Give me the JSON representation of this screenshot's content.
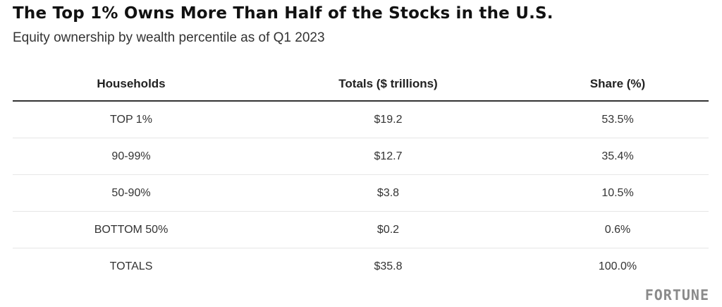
{
  "chart_data": {
    "type": "table",
    "title": "The Top 1% Owns More Than Half of the Stocks in the U.S.",
    "subtitle": "Equity ownership by wealth percentile as of Q1 2023",
    "columns": [
      "Households",
      "Totals ($ trillions)",
      "Share (%)"
    ],
    "rows": [
      {
        "households": "TOP 1%",
        "total": "$19.2",
        "share": "53.5%"
      },
      {
        "households": "90-99%",
        "total": "$12.7",
        "share": "35.4%"
      },
      {
        "households": "50-90%",
        "total": "$3.8",
        "share": "10.5%"
      },
      {
        "households": "BOTTOM 50%",
        "total": "$0.2",
        "share": "0.6%"
      },
      {
        "households": "TOTALS",
        "total": "$35.8",
        "share": "100.0%"
      }
    ]
  },
  "source_logo": "FORTUNE"
}
